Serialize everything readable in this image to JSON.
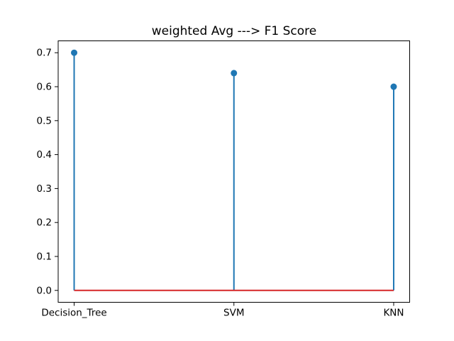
{
  "figure": {
    "background": "#ffffff"
  },
  "chart_data": {
    "type": "stem",
    "title": "weighted Avg ---> F1 Score",
    "categories": [
      "Decision_Tree",
      "SVM",
      "KNN"
    ],
    "values": [
      0.7,
      0.64,
      0.6
    ],
    "xlabel": "",
    "ylabel": "",
    "yticks": [
      0.0,
      0.1,
      0.2,
      0.3,
      0.4,
      0.5,
      0.6,
      0.7
    ],
    "ytick_format_decimals": 1,
    "ylim": [
      -0.035,
      0.735
    ],
    "xlim": [
      -0.1,
      2.1
    ],
    "grid": false,
    "legend": null,
    "stem_color": "#1f77b4",
    "marker_color": "#1f77b4",
    "baseline_color": "#d62728",
    "baseline_value": 0.0,
    "axes_color": "#000000",
    "marker_shape": "circle"
  }
}
